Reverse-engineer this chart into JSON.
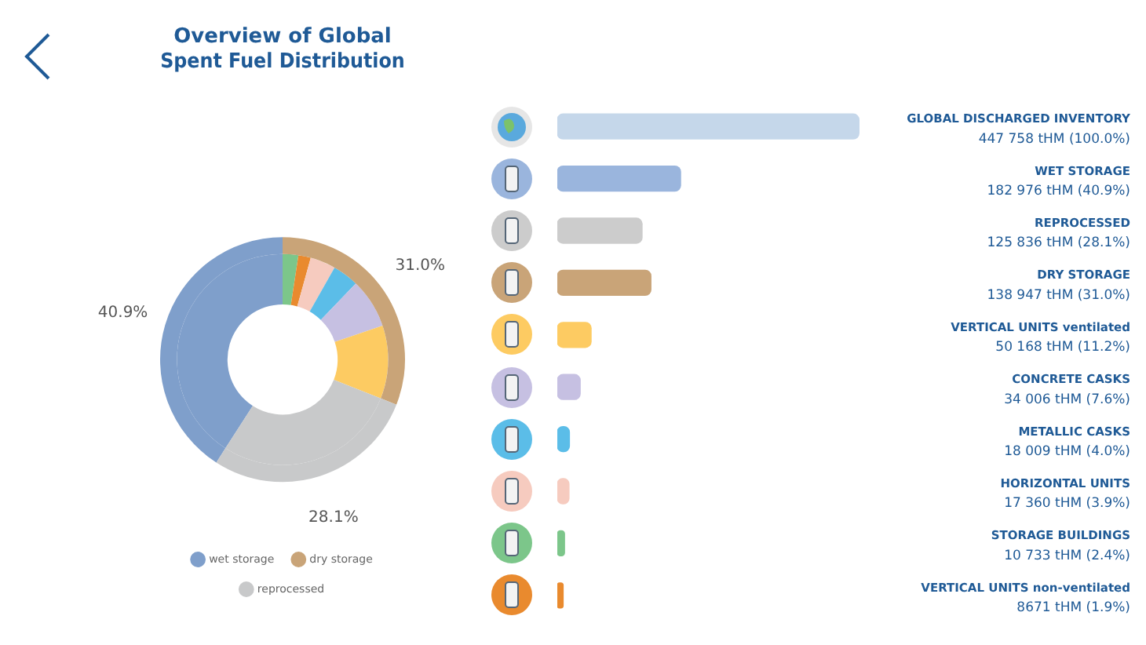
{
  "chart_data": [
    {
      "type": "donut",
      "title": "Overview of Global\nSpent Fuel Distribution",
      "categories": [
        "wet storage",
        "dry storage",
        null,
        null,
        null,
        null,
        null,
        "reprocessed"
      ],
      "legend": "bottom",
      "series": [
        {
          "values": [
            40.9,
            31.0,
            null,
            null,
            null,
            null,
            null,
            28.1
          ],
          "colors": [
            "#7f9fcb",
            "#c9a478",
            null,
            null,
            null,
            null,
            null,
            "#c8c9ca"
          ],
          "value_labels": [
            "40.9%",
            "31.0%",
            null,
            null,
            null,
            null,
            null,
            "28.1%"
          ]
        },
        {
          "values": [
            40.9,
            2.4,
            1.9,
            3.9,
            4.0,
            7.6,
            11.2,
            28.1
          ],
          "colors": [
            "#7f9fcb",
            "#7cc68a",
            "#e98a2e",
            "#f6cbbf",
            "#5bbde8",
            "#c6c0e2",
            "#fdcb62",
            "#c8c9ca"
          ]
        }
      ]
    },
    {
      "type": "bar",
      "orientation": "horizontal",
      "categories": [
        "GLOBAL DISCHARGED INVENTORY",
        "WET STORAGE",
        "REPROCESSED",
        "DRY STORAGE",
        "VERTICAL UNITS ventilated",
        "CONCRETE CASKS",
        "METALLIC CASKS",
        "HORIZONTAL UNITS",
        "STORAGE BUILDINGS",
        "VERTICAL UNITS non-ventilated"
      ],
      "values": [
        447758,
        182976,
        125836,
        138947,
        50168,
        34006,
        18009,
        17360,
        10733,
        8671
      ],
      "colors": [
        "#c5d7ea",
        "#9ab5dd",
        "#cccccc",
        "#c9a478",
        "#fdcb62",
        "#c6c0e2",
        "#5bbde8",
        "#f6cbbf",
        "#7cc68a",
        "#e98a2e"
      ],
      "value_labels": [
        "447 758 tHM (100.0%)",
        "182 976 tHM (40.9%)",
        "125 836 tHM (28.1%)",
        "138 947 tHM (31.0%)",
        "50 168 tHM (11.2%)",
        "34 006 tHM (7.6%)",
        "18 009 tHM (4.0%)",
        "17 360 tHM (3.9%)",
        "10 733 tHM (2.4%)",
        "8671 tHM (1.9%)"
      ],
      "tick_labels": "y",
      "legend": false
    }
  ]
}
